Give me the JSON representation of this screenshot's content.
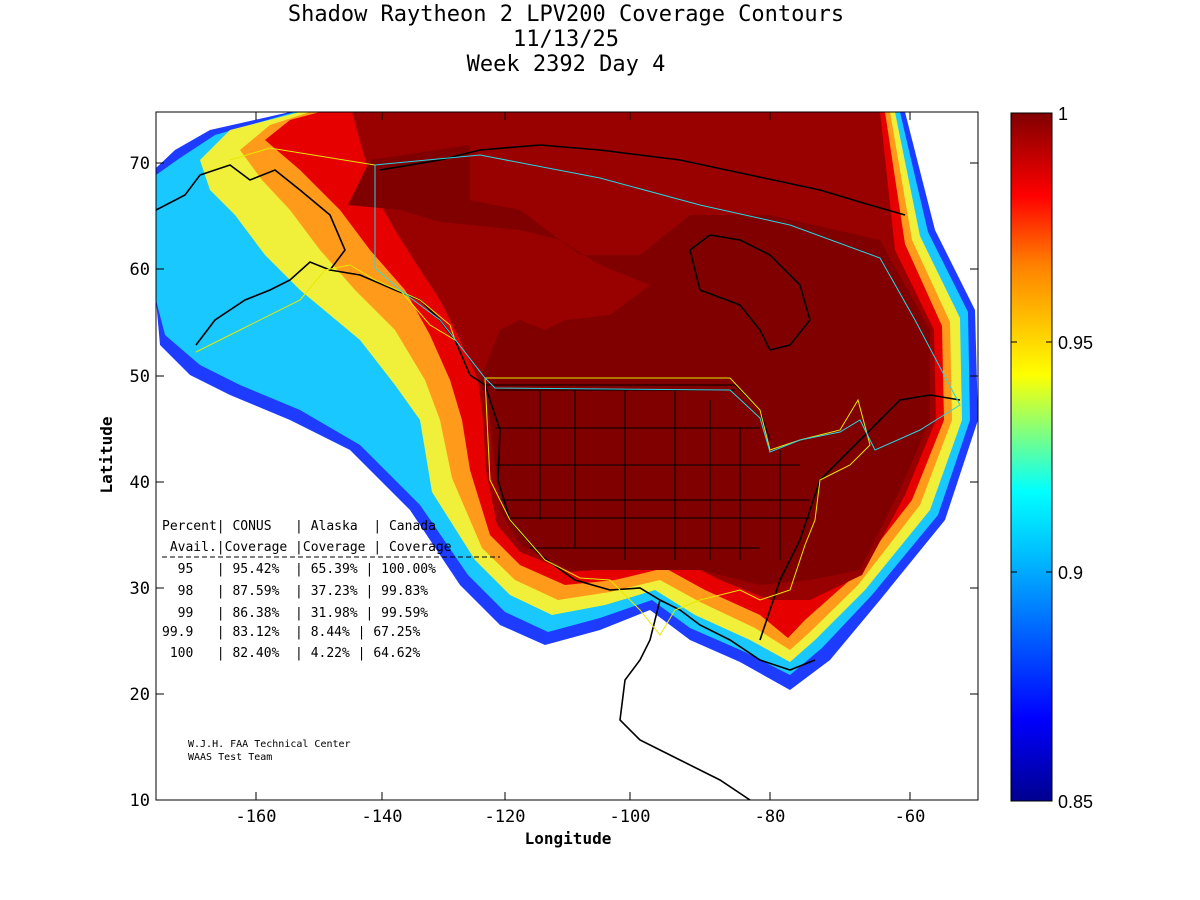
{
  "title": {
    "line1": "Shadow Raytheon 2 LPV200 Coverage Contours",
    "line2": "11/13/25",
    "line3": "Week 2392 Day 4"
  },
  "axes": {
    "xlabel": "Longitude",
    "ylabel": "Latitude",
    "xticks": [
      "-160",
      "-140",
      "-120",
      "-100",
      "-80",
      "-60"
    ],
    "yticks": [
      "70",
      "60",
      "50",
      "40",
      "30",
      "20",
      "10"
    ]
  },
  "colorbar": {
    "ticks": [
      "1",
      "0.95",
      "0.9",
      "0.85"
    ],
    "stops": [
      "#00008f",
      "#0000ff",
      "#00ffff",
      "#ffff00",
      "#ff8000",
      "#ff0000",
      "#800000"
    ]
  },
  "table": {
    "header1": "Percent| CONUS   | Alaska  | Canada",
    "header2": " Avail.|Coverage |Coverage | Coverage",
    "rows": [
      "  95   | 95.42%  | 65.39% | 100.00%",
      "  98   | 87.59%  | 37.23% | 99.83%",
      "  99   | 86.38%  | 31.98% | 99.59%",
      "99.9   | 83.12%  | 8.44% | 67.25%",
      " 100   | 82.40%  | 4.22% | 64.62%"
    ]
  },
  "credit": {
    "line1": "W.J.H. FAA Technical Center",
    "line2": "WAAS Test Team"
  },
  "chart_data": {
    "type": "heatmap",
    "title": "Shadow Raytheon 2 LPV200 Coverage Contours",
    "xlabel": "Longitude",
    "ylabel": "Latitude",
    "xlim": [
      -175,
      -50
    ],
    "ylim": [
      10,
      75
    ],
    "colorbar_range": [
      0.85,
      1
    ],
    "coverage_table": {
      "columns": [
        "Percent Avail.",
        "CONUS Coverage",
        "Alaska Coverage",
        "Canada Coverage"
      ],
      "rows": [
        [
          "95",
          "95.42%",
          "65.39%",
          "100.00%"
        ],
        [
          "98",
          "87.59%",
          "37.23%",
          "99.83%"
        ],
        [
          "99",
          "86.38%",
          "31.98%",
          "99.59%"
        ],
        [
          "99.9",
          "83.12%",
          "8.44%",
          "67.25%"
        ],
        [
          "100",
          "82.40%",
          "4.22%",
          "64.62%"
        ]
      ]
    }
  }
}
